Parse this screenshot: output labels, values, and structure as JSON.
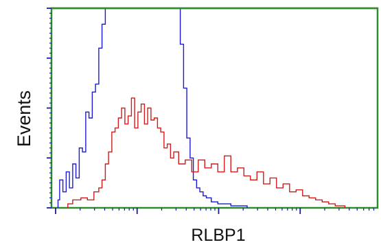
{
  "chart_data": {
    "type": "line",
    "xlabel": "RLBP1",
    "ylabel": "Events",
    "x_scale": "log",
    "x_range": [
      0,
      100
    ],
    "y_range": [
      0,
      100
    ],
    "grid": false,
    "series": [
      {
        "color": "#1a1ad0",
        "x": [
          2,
          3,
          4,
          5,
          6,
          7,
          8,
          9,
          10,
          11,
          12,
          13,
          14,
          15,
          16,
          17,
          18,
          19,
          20,
          21,
          22,
          23,
          24,
          25,
          26,
          27,
          28,
          29,
          30,
          31,
          32,
          33,
          34,
          35,
          36,
          37,
          38,
          39,
          40,
          41,
          42,
          43,
          44,
          45,
          46,
          47,
          48,
          50,
          52,
          54,
          56,
          60
        ],
        "y": [
          4,
          14,
          8,
          18,
          10,
          22,
          15,
          30,
          28,
          48,
          45,
          58,
          62,
          80,
          92,
          100,
          100,
          100,
          100,
          100,
          100,
          100,
          100,
          100,
          100,
          100,
          100,
          100,
          100,
          100,
          100,
          100,
          100,
          100,
          100,
          100,
          100,
          100,
          82,
          60,
          35,
          25,
          14,
          10,
          8,
          6,
          5,
          3,
          2,
          2,
          1,
          1
        ]
      },
      {
        "color": "#d11a1a",
        "x": [
          5,
          8,
          10,
          12,
          14,
          15,
          16,
          17,
          18,
          19,
          20,
          21,
          22,
          23,
          24,
          25,
          26,
          27,
          28,
          29,
          30,
          31,
          32,
          33,
          34,
          35,
          36,
          37,
          38,
          40,
          42,
          44,
          46,
          48,
          50,
          52,
          54,
          56,
          58,
          60,
          62,
          64,
          66,
          68,
          70,
          72,
          74,
          76,
          78,
          80,
          82,
          84,
          86,
          88,
          90
        ],
        "y": [
          2,
          4,
          5,
          4,
          8,
          10,
          14,
          22,
          28,
          38,
          40,
          45,
          50,
          42,
          46,
          55,
          40,
          48,
          52,
          42,
          50,
          44,
          45,
          40,
          38,
          30,
          32,
          25,
          28,
          22,
          24,
          18,
          24,
          20,
          22,
          18,
          26,
          18,
          20,
          16,
          14,
          18,
          12,
          15,
          10,
          12,
          8,
          9,
          6,
          5,
          4,
          3,
          2,
          1,
          1
        ]
      }
    ]
  }
}
